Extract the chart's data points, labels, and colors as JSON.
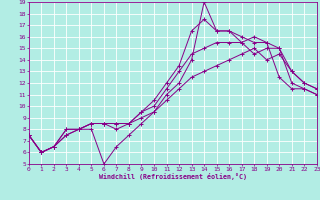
{
  "xlabel": "Windchill (Refroidissement éolien,°C)",
  "xlim": [
    0,
    23
  ],
  "ylim": [
    5,
    19
  ],
  "xticks": [
    0,
    1,
    2,
    3,
    4,
    5,
    6,
    7,
    8,
    9,
    10,
    11,
    12,
    13,
    14,
    15,
    16,
    17,
    18,
    19,
    20,
    21,
    22,
    23
  ],
  "yticks": [
    5,
    6,
    7,
    8,
    9,
    10,
    11,
    12,
    13,
    14,
    15,
    16,
    17,
    18,
    19
  ],
  "bg_color": "#b2ede4",
  "line_color": "#880088",
  "grid_color": "#ffffff",
  "lines": [
    {
      "x": [
        0,
        1,
        2,
        3,
        4,
        5,
        6,
        7,
        8,
        9,
        10,
        11,
        12,
        13,
        14,
        15,
        16,
        17,
        18,
        19,
        20,
        21,
        22,
        23
      ],
      "y": [
        7.5,
        6.0,
        6.5,
        7.5,
        8.0,
        8.0,
        5.0,
        6.5,
        7.5,
        8.5,
        9.5,
        11.0,
        12.0,
        14.0,
        19.0,
        16.5,
        16.5,
        15.5,
        16.0,
        15.5,
        12.5,
        11.5,
        11.5,
        11.0
      ]
    },
    {
      "x": [
        0,
        1,
        2,
        3,
        4,
        5,
        6,
        7,
        8,
        9,
        10,
        11,
        12,
        13,
        14,
        15,
        16,
        17,
        18,
        19,
        20,
        21,
        22,
        23
      ],
      "y": [
        7.5,
        6.0,
        6.5,
        7.5,
        8.0,
        8.5,
        8.5,
        8.0,
        8.5,
        9.5,
        10.5,
        12.0,
        13.5,
        16.5,
        17.5,
        16.5,
        16.5,
        16.0,
        15.5,
        15.5,
        15.0,
        12.0,
        11.5,
        11.0
      ]
    },
    {
      "x": [
        0,
        1,
        2,
        3,
        4,
        5,
        6,
        7,
        8,
        9,
        10,
        11,
        12,
        13,
        14,
        15,
        16,
        17,
        18,
        19,
        20,
        21,
        22,
        23
      ],
      "y": [
        7.5,
        6.0,
        6.5,
        8.0,
        8.0,
        8.5,
        8.5,
        8.5,
        8.5,
        9.5,
        10.0,
        11.5,
        13.0,
        14.5,
        15.0,
        15.5,
        15.5,
        15.5,
        14.5,
        15.0,
        15.0,
        13.0,
        12.0,
        11.5
      ]
    },
    {
      "x": [
        0,
        1,
        2,
        3,
        4,
        5,
        6,
        7,
        8,
        9,
        10,
        11,
        12,
        13,
        14,
        15,
        16,
        17,
        18,
        19,
        20,
        21,
        22,
        23
      ],
      "y": [
        7.5,
        6.0,
        6.5,
        8.0,
        8.0,
        8.5,
        8.5,
        8.5,
        8.5,
        9.0,
        9.5,
        10.5,
        11.5,
        12.5,
        13.0,
        13.5,
        14.0,
        14.5,
        15.0,
        14.0,
        14.5,
        13.0,
        12.0,
        11.5
      ]
    }
  ]
}
